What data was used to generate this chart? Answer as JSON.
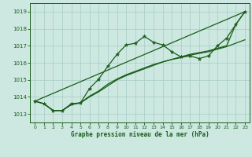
{
  "title": "Graphe pression niveau de la mer (hPa)",
  "background_color": "#cce8e0",
  "grid_color": "#a8ccc4",
  "line_color": "#1a5c1a",
  "text_color": "#1a5c1a",
  "xlim": [
    -0.5,
    23.5
  ],
  "ylim": [
    1012.5,
    1019.5
  ],
  "xticks": [
    0,
    1,
    2,
    3,
    4,
    5,
    6,
    7,
    8,
    9,
    10,
    11,
    12,
    13,
    14,
    15,
    16,
    17,
    18,
    19,
    20,
    21,
    22,
    23
  ],
  "yticks": [
    1013,
    1014,
    1015,
    1016,
    1017,
    1018,
    1019
  ],
  "series1_marked": {
    "x": [
      0,
      1,
      2,
      3,
      4,
      5,
      6,
      7,
      8,
      9,
      10,
      11,
      12,
      13,
      14,
      15,
      16,
      17,
      18,
      19,
      20,
      21,
      22,
      23
    ],
    "y": [
      1013.75,
      1013.6,
      1013.2,
      1013.2,
      1013.6,
      1013.65,
      1014.5,
      1015.05,
      1015.8,
      1016.5,
      1017.05,
      1017.15,
      1017.55,
      1017.2,
      1017.05,
      1016.65,
      1016.35,
      1016.4,
      1016.25,
      1016.4,
      1017.0,
      1017.45,
      1018.25,
      1019.0
    ]
  },
  "series2_straight": {
    "x": [
      0,
      23
    ],
    "y": [
      1013.75,
      1019.0
    ]
  },
  "series3_lower": {
    "x": [
      0,
      1,
      2,
      3,
      4,
      5,
      6,
      7,
      8,
      9,
      10,
      11,
      12,
      13,
      14,
      15,
      16,
      17,
      18,
      19,
      20,
      21,
      22,
      23
    ],
    "y": [
      1013.75,
      1013.6,
      1013.2,
      1013.2,
      1013.55,
      1013.65,
      1014.0,
      1014.3,
      1014.65,
      1015.0,
      1015.25,
      1015.45,
      1015.65,
      1015.85,
      1016.05,
      1016.2,
      1016.3,
      1016.45,
      1016.55,
      1016.65,
      1016.8,
      1016.95,
      1017.15,
      1017.35
    ]
  },
  "series4_lower2": {
    "x": [
      0,
      1,
      2,
      3,
      4,
      5,
      6,
      7,
      8,
      9,
      10,
      11,
      12,
      13,
      14,
      15,
      16,
      17,
      18,
      19,
      20,
      21,
      22,
      23
    ],
    "y": [
      1013.75,
      1013.6,
      1013.2,
      1013.2,
      1013.55,
      1013.65,
      1014.05,
      1014.35,
      1014.75,
      1015.05,
      1015.3,
      1015.5,
      1015.7,
      1015.9,
      1016.05,
      1016.2,
      1016.35,
      1016.5,
      1016.6,
      1016.7,
      1016.85,
      1017.0,
      1018.25,
      1019.0
    ]
  }
}
